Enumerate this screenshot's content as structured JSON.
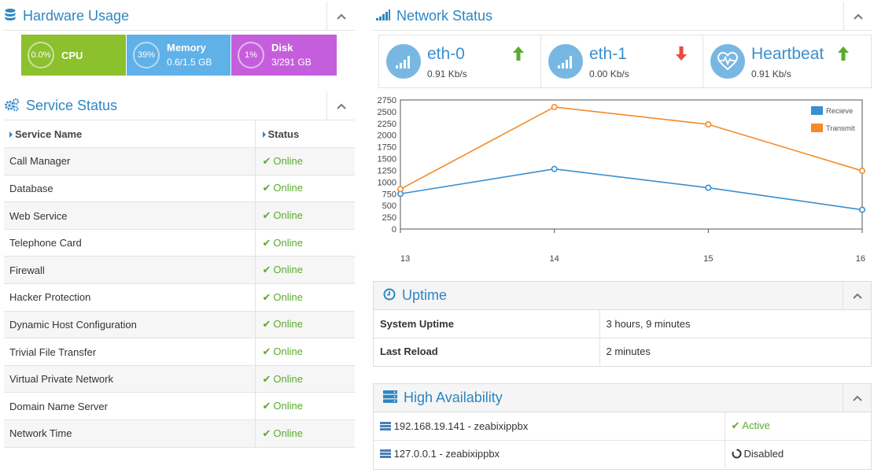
{
  "hardware": {
    "title": "Hardware Usage",
    "cpu": {
      "percent_label": "0.0%",
      "label": "CPU",
      "color": "#8cc02d"
    },
    "memory": {
      "percent_label": "39%",
      "label": "Memory",
      "detail": "0.6/1.5 GB",
      "color": "#5fb1e8"
    },
    "disk": {
      "percent_label": "1%",
      "label": "Disk",
      "detail": "3/291 GB",
      "color": "#c55edc"
    }
  },
  "service_status": {
    "title": "Service Status",
    "columns": [
      "Service Name",
      "Status"
    ],
    "rows": [
      {
        "name": "Call Manager",
        "status": "Online"
      },
      {
        "name": "Database",
        "status": "Online"
      },
      {
        "name": "Web Service",
        "status": "Online"
      },
      {
        "name": "Telephone Card",
        "status": "Online"
      },
      {
        "name": "Firewall",
        "status": "Online"
      },
      {
        "name": "Hacker Protection",
        "status": "Online"
      },
      {
        "name": "Dynamic Host Configuration",
        "status": "Online"
      },
      {
        "name": "Trivial File Transfer",
        "status": "Online"
      },
      {
        "name": "Virtual Private Network",
        "status": "Online"
      },
      {
        "name": "Domain Name Server",
        "status": "Online"
      },
      {
        "name": "Network Time",
        "status": "Online"
      }
    ]
  },
  "network": {
    "title": "Network Status",
    "interfaces": [
      {
        "name": "eth-0",
        "rate": "0.91 Kb/s",
        "direction": "up",
        "icon": "signal-icon"
      },
      {
        "name": "eth-1",
        "rate": "0.00 Kb/s",
        "direction": "down",
        "icon": "signal-icon"
      },
      {
        "name": "Heartbeat",
        "rate": "0.91 Kb/s",
        "direction": "up",
        "icon": "heart-pulse-icon"
      }
    ],
    "arrow_up_color": "#5aab2e",
    "arrow_down_color": "#e74c3c"
  },
  "chart_data": {
    "type": "line",
    "title": "",
    "xlabel": "",
    "ylabel": "",
    "x": [
      13,
      14,
      15,
      16
    ],
    "ylim": [
      0,
      2750
    ],
    "yticks": [
      0,
      250,
      500,
      750,
      1000,
      1250,
      1500,
      1750,
      2000,
      2250,
      2500,
      2750
    ],
    "grid": false,
    "legend_position": "top-right",
    "series": [
      {
        "name": "Recieve",
        "color": "#3a8fd0",
        "values": [
          750,
          1280,
          880,
          410
        ]
      },
      {
        "name": "Transmit",
        "color": "#f58a2a",
        "values": [
          850,
          2600,
          2230,
          1240
        ]
      }
    ]
  },
  "uptime": {
    "title": "Uptime",
    "rows": [
      {
        "key": "System Uptime",
        "value": "3 hours, 9 minutes"
      },
      {
        "key": "Last Reload",
        "value": "2 minutes"
      }
    ]
  },
  "high_availability": {
    "title": "High Availability",
    "rows": [
      {
        "node": "192.168.19.141 - zeabixippbx",
        "status": "Active"
      },
      {
        "node": "127.0.0.1 - zeabixippbx",
        "status": "Disabled"
      }
    ]
  }
}
